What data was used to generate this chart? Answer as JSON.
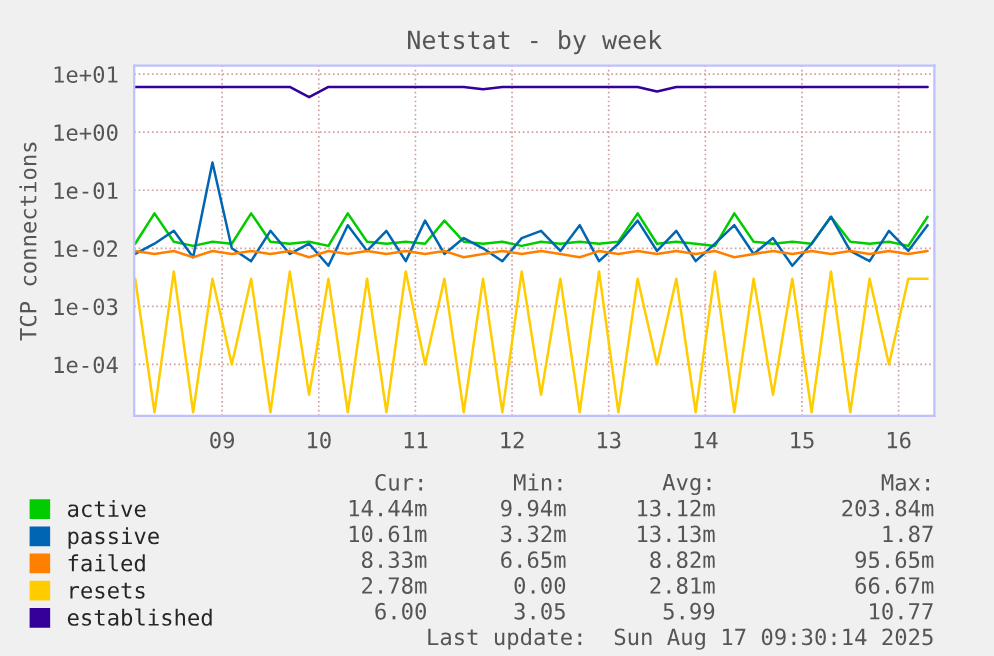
{
  "chart_data": {
    "type": "line",
    "title": "Netstat - by week",
    "ylabel": "TCP connections",
    "x": [
      8.6,
      8.8,
      9.0,
      9.2,
      9.4,
      9.6,
      9.8,
      10.0,
      10.2,
      10.4,
      10.6,
      10.8,
      11.0,
      11.2,
      11.4,
      11.6,
      11.8,
      12.0,
      12.2,
      12.4,
      12.6,
      12.8,
      13.0,
      13.2,
      13.4,
      13.6,
      13.8,
      14.0,
      14.2,
      14.4,
      14.6,
      14.8,
      15.0,
      15.2,
      15.4,
      15.6,
      15.8,
      16.0,
      16.2,
      16.4,
      16.6,
      16.8
    ],
    "series": [
      {
        "name": "active",
        "color": "#00cc00",
        "values": [
          0.012,
          0.04,
          0.013,
          0.011,
          0.013,
          0.012,
          0.04,
          0.013,
          0.012,
          0.013,
          0.011,
          0.04,
          0.013,
          0.012,
          0.013,
          0.012,
          0.03,
          0.013,
          0.012,
          0.013,
          0.011,
          0.013,
          0.012,
          0.013,
          0.012,
          0.013,
          0.04,
          0.012,
          0.013,
          0.012,
          0.011,
          0.04,
          0.013,
          0.012,
          0.013,
          0.012,
          0.035,
          0.013,
          0.012,
          0.013,
          0.011,
          0.035
        ]
      },
      {
        "name": "passive",
        "color": "#0066b3",
        "values": [
          0.008,
          0.012,
          0.02,
          0.007,
          0.3,
          0.01,
          0.006,
          0.02,
          0.008,
          0.012,
          0.005,
          0.025,
          0.009,
          0.02,
          0.006,
          0.03,
          0.008,
          0.015,
          0.01,
          0.006,
          0.015,
          0.02,
          0.009,
          0.025,
          0.006,
          0.012,
          0.03,
          0.009,
          0.02,
          0.006,
          0.012,
          0.025,
          0.008,
          0.015,
          0.005,
          0.012,
          0.035,
          0.009,
          0.006,
          0.02,
          0.009,
          0.025
        ]
      },
      {
        "name": "failed",
        "color": "#ff8000",
        "values": [
          0.009,
          0.008,
          0.009,
          0.007,
          0.009,
          0.008,
          0.009,
          0.008,
          0.009,
          0.007,
          0.009,
          0.008,
          0.009,
          0.008,
          0.009,
          0.008,
          0.009,
          0.007,
          0.008,
          0.009,
          0.008,
          0.009,
          0.008,
          0.007,
          0.009,
          0.008,
          0.009,
          0.008,
          0.009,
          0.008,
          0.009,
          0.007,
          0.008,
          0.009,
          0.008,
          0.009,
          0.008,
          0.009,
          0.008,
          0.009,
          0.008,
          0.009
        ]
      },
      {
        "name": "resets",
        "color": "#ffcc00",
        "values": [
          0.003,
          1.5e-05,
          0.004,
          1.5e-05,
          0.003,
          0.0001,
          0.003,
          1.5e-05,
          0.004,
          3e-05,
          0.003,
          1.5e-05,
          0.003,
          1.5e-05,
          0.004,
          0.0001,
          0.003,
          1.5e-05,
          0.003,
          1.5e-05,
          0.004,
          3e-05,
          0.003,
          1.5e-05,
          0.004,
          1.5e-05,
          0.003,
          0.0001,
          0.003,
          1.5e-05,
          0.004,
          1.5e-05,
          0.003,
          3e-05,
          0.003,
          1.5e-05,
          0.004,
          1.5e-05,
          0.003,
          0.0001,
          0.003,
          0.003
        ]
      },
      {
        "name": "established",
        "color": "#330099",
        "values": [
          6,
          6,
          6,
          6,
          6,
          6,
          6,
          6,
          6,
          4,
          6,
          6,
          6,
          6,
          6,
          6,
          6,
          6,
          5.5,
          6,
          6,
          6,
          6,
          6,
          6,
          6,
          6,
          5,
          6,
          6,
          6,
          6,
          6,
          6,
          6,
          6,
          6,
          6,
          6,
          6,
          6,
          6
        ]
      }
    ],
    "log": true,
    "ylim": [
      1.3e-05,
      14
    ],
    "yticks": [
      {
        "value": 0.0001,
        "label": "1e-04"
      },
      {
        "value": 0.001,
        "label": "1e-03"
      },
      {
        "value": 0.01,
        "label": "1e-02"
      },
      {
        "value": 0.1,
        "label": "1e-01"
      },
      {
        "value": 1,
        "label": "1e+00"
      },
      {
        "value": 10,
        "label": "1e+01"
      }
    ],
    "xlim": [
      8.59,
      16.87
    ],
    "xticks": [
      {
        "value": 9.5,
        "label": "09"
      },
      {
        "value": 10.5,
        "label": "10"
      },
      {
        "value": 11.5,
        "label": "11"
      },
      {
        "value": 12.5,
        "label": "12"
      },
      {
        "value": 13.5,
        "label": "13"
      },
      {
        "value": 14.5,
        "label": "14"
      },
      {
        "value": 15.5,
        "label": "15"
      },
      {
        "value": 16.5,
        "label": "16"
      }
    ],
    "grid": true,
    "legend": "bottom",
    "marker": "none",
    "line_style": "solid",
    "annotations": [
      "Cur:",
      "Min:",
      "Avg:",
      "Max:",
      "14.44m",
      "9.94m",
      "13.12m",
      "203.84m",
      "10.61m",
      "3.32m",
      "13.13m",
      "1.87",
      "8.33m",
      "6.65m",
      "8.82m",
      "95.65m",
      "2.78m",
      "0.00",
      "2.81m",
      "66.67m",
      "6.00",
      "3.05",
      "5.99",
      "10.77",
      "Last update:  Sun Aug 17 09:30:14 2025"
    ]
  }
}
